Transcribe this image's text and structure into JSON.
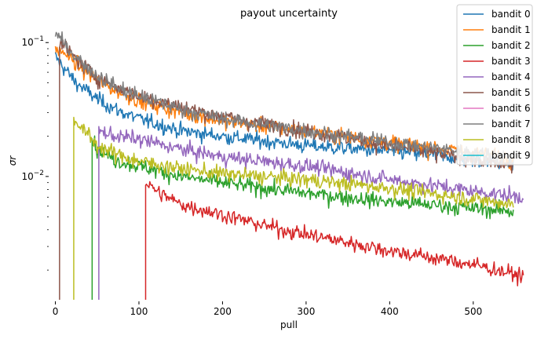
{
  "chart_data": {
    "type": "line",
    "title": "payout uncertainty",
    "xlabel": "pull",
    "ylabel": "σr",
    "yscale": "log",
    "xlim": [
      -8,
      565
    ],
    "ylim": [
      0.0012,
      0.135
    ],
    "xticks": [
      0,
      100,
      200,
      300,
      400,
      500
    ],
    "yticks": [
      {
        "value": 0.1,
        "base": "10",
        "exp": "−1"
      },
      {
        "value": 0.01,
        "base": "10",
        "exp": "−2"
      }
    ],
    "grid": false,
    "legend_position": "top-right",
    "series": [
      {
        "name": "bandit 0",
        "color": "#1f77b4",
        "start": 0,
        "end": 548,
        "points": [
          [
            0,
            0.078
          ],
          [
            10,
            0.065
          ],
          [
            25,
            0.05
          ],
          [
            50,
            0.038
          ],
          [
            75,
            0.031
          ],
          [
            100,
            0.027
          ],
          [
            150,
            0.022
          ],
          [
            200,
            0.02
          ],
          [
            300,
            0.017
          ],
          [
            400,
            0.0155
          ],
          [
            500,
            0.0135
          ],
          [
            548,
            0.0125
          ]
        ]
      },
      {
        "name": "bandit 1",
        "color": "#ff7f0e",
        "start": 0,
        "end": 548,
        "points": [
          [
            0,
            0.088
          ],
          [
            10,
            0.085
          ],
          [
            25,
            0.07
          ],
          [
            50,
            0.052
          ],
          [
            75,
            0.043
          ],
          [
            100,
            0.037
          ],
          [
            150,
            0.03
          ],
          [
            200,
            0.026
          ],
          [
            300,
            0.022
          ],
          [
            400,
            0.018
          ],
          [
            500,
            0.015
          ],
          [
            548,
            0.0135
          ]
        ]
      },
      {
        "name": "bandit 2",
        "color": "#2ca02c",
        "start": 44,
        "end": 548,
        "points": [
          [
            44,
            0.02
          ],
          [
            50,
            0.016
          ],
          [
            75,
            0.013
          ],
          [
            100,
            0.012
          ],
          [
            150,
            0.01
          ],
          [
            200,
            0.009
          ],
          [
            300,
            0.0075
          ],
          [
            400,
            0.0065
          ],
          [
            500,
            0.0058
          ],
          [
            548,
            0.0055
          ]
        ]
      },
      {
        "name": "bandit 3",
        "color": "#d62728",
        "start": 108,
        "end": 560,
        "points": [
          [
            108,
            0.009
          ],
          [
            125,
            0.0075
          ],
          [
            150,
            0.0062
          ],
          [
            200,
            0.0052
          ],
          [
            250,
            0.0043
          ],
          [
            300,
            0.0037
          ],
          [
            400,
            0.0028
          ],
          [
            500,
            0.0022
          ],
          [
            560,
            0.0018
          ]
        ]
      },
      {
        "name": "bandit 4",
        "color": "#9467bd",
        "start": 52,
        "end": 560,
        "points": [
          [
            52,
            0.022
          ],
          [
            60,
            0.021
          ],
          [
            75,
            0.02
          ],
          [
            100,
            0.019
          ],
          [
            150,
            0.016
          ],
          [
            200,
            0.014
          ],
          [
            300,
            0.012
          ],
          [
            400,
            0.0095
          ],
          [
            500,
            0.0078
          ],
          [
            560,
            0.007
          ]
        ]
      },
      {
        "name": "bandit 5",
        "color": "#8c564b",
        "start": 5,
        "end": 548,
        "points": [
          [
            5,
            0.1
          ],
          [
            10,
            0.095
          ],
          [
            25,
            0.075
          ],
          [
            50,
            0.055
          ],
          [
            75,
            0.046
          ],
          [
            100,
            0.04
          ],
          [
            150,
            0.033
          ],
          [
            200,
            0.028
          ],
          [
            300,
            0.022
          ],
          [
            400,
            0.017
          ],
          [
            500,
            0.0135
          ],
          [
            548,
            0.012
          ]
        ]
      },
      {
        "name": "bandit 6",
        "color": "#e377c2",
        "start": null,
        "end": null,
        "points": []
      },
      {
        "name": "bandit 7",
        "color": "#7f7f7f",
        "start": 0,
        "end": 548,
        "points": [
          [
            0,
            0.12
          ],
          [
            10,
            0.098
          ],
          [
            25,
            0.078
          ],
          [
            50,
            0.057
          ],
          [
            75,
            0.046
          ],
          [
            100,
            0.04
          ],
          [
            150,
            0.032
          ],
          [
            200,
            0.027
          ],
          [
            300,
            0.022
          ],
          [
            400,
            0.018
          ],
          [
            500,
            0.015
          ],
          [
            548,
            0.014
          ]
        ]
      },
      {
        "name": "bandit 8",
        "color": "#bcbd22",
        "start": 22,
        "end": 548,
        "points": [
          [
            22,
            0.027
          ],
          [
            35,
            0.022
          ],
          [
            50,
            0.017
          ],
          [
            75,
            0.0145
          ],
          [
            100,
            0.013
          ],
          [
            150,
            0.0115
          ],
          [
            200,
            0.0105
          ],
          [
            300,
            0.0095
          ],
          [
            400,
            0.0082
          ],
          [
            500,
            0.0068
          ],
          [
            548,
            0.0062
          ]
        ]
      },
      {
        "name": "bandit 9",
        "color": "#17becf",
        "start": null,
        "end": null,
        "points": []
      }
    ]
  }
}
